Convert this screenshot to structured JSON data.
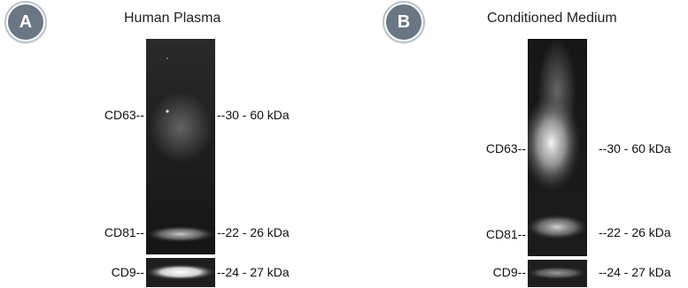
{
  "panel_a": {
    "badge": "A",
    "title": "Human Plasma",
    "labels_left": {
      "cd63": "CD63--",
      "cd81": "CD81--",
      "cd9": "CD9--"
    },
    "labels_right": {
      "cd63": "--30 - 60 kDa",
      "cd81": "--22 - 26 kDa",
      "cd9": "--24 - 27 kDa"
    }
  },
  "panel_b": {
    "badge": "B",
    "title": "Conditioned Medium",
    "labels_left": {
      "cd63": "CD63--",
      "cd81": "CD81--",
      "cd9": "CD9--"
    },
    "labels_right": {
      "cd63": "--30 - 60 kDa",
      "cd81": "--22 - 26 kDa",
      "cd9": "--24 - 27 kDa"
    }
  },
  "colors": {
    "badge": "#6a7683",
    "blot_background": "#1c1c1c"
  }
}
